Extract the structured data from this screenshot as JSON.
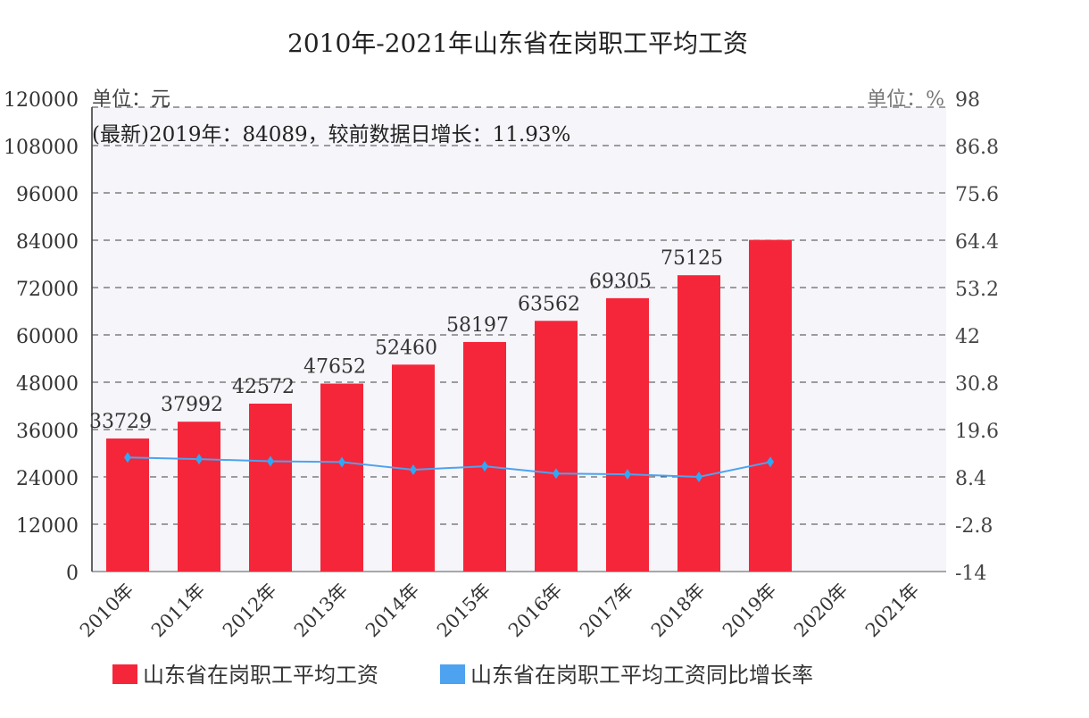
{
  "chart_data": {
    "type": "bar",
    "title": "2010年-2021年山东省在岗职工平均工资",
    "left_unit": "单位：元",
    "right_unit": "单位：%",
    "annotation": "(最新)2019年：84089，较前数据日增长：11.93%",
    "categories": [
      "2010年",
      "2011年",
      "2012年",
      "2013年",
      "2014年",
      "2015年",
      "2016年",
      "2017年",
      "2018年",
      "2019年",
      "2020年",
      "2021年"
    ],
    "series": [
      {
        "name": "山东省在岗职工平均工资",
        "type": "bar",
        "axis": "left",
        "color": "#f5263a",
        "values": [
          33729,
          37992,
          42572,
          47652,
          52460,
          58197,
          63562,
          69305,
          75125,
          84089,
          null,
          null
        ],
        "labels": [
          "33729",
          "37992",
          "42572",
          "47652",
          "52460",
          "58197",
          "63562",
          "69305",
          "75125",
          "",
          "",
          ""
        ]
      },
      {
        "name": "山东省在岗职工平均工资同比增长率",
        "type": "line",
        "axis": "right",
        "color": "#4da3f0",
        "values": [
          13.0,
          12.6,
          12.1,
          11.9,
          10.1,
          10.9,
          9.2,
          9.0,
          8.4,
          11.93,
          null,
          null
        ]
      }
    ],
    "y_left": {
      "min": 0,
      "max": 120000,
      "ticks": [
        "0",
        "12000",
        "24000",
        "36000",
        "48000",
        "60000",
        "72000",
        "84000",
        "96000",
        "108000",
        "120000"
      ]
    },
    "y_right": {
      "min": -14,
      "max": 98,
      "ticks": [
        "-14",
        "-2.8",
        "8.4",
        "19.6",
        "30.8",
        "42",
        "53.2",
        "64.4",
        "75.6",
        "86.8",
        "98"
      ]
    },
    "grid": true,
    "legend": "bottom"
  }
}
